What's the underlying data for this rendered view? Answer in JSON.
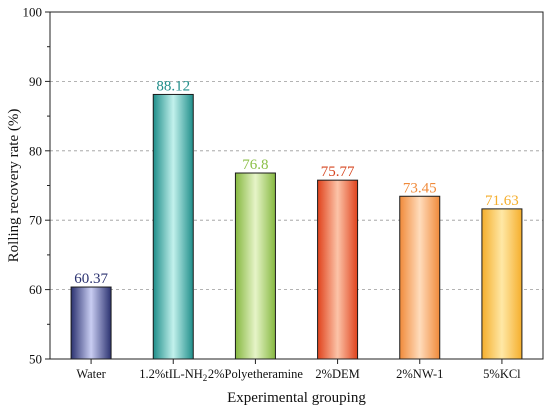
{
  "chart_data": {
    "type": "bar",
    "categories": [
      "Water",
      "1.2%tIL-NH2",
      "2%Polyetheramine",
      "2%DEM",
      "2%NW-1",
      "5%KCl"
    ],
    "category_labels": [
      {
        "text": "Water"
      },
      {
        "text": "1.2%tIL-NH",
        "sub": "2"
      },
      {
        "text": "2%Polyetheramine"
      },
      {
        "text": "2%DEM"
      },
      {
        "text": "2%NW-1"
      },
      {
        "text": "5%KCl"
      }
    ],
    "values": [
      60.37,
      88.12,
      76.8,
      75.77,
      73.45,
      71.63
    ],
    "data_labels": [
      "60.37",
      "88.12",
      "76.8",
      "75.77",
      "73.45",
      "71.63"
    ],
    "bar_colors": [
      {
        "base": "#2b3270",
        "light": "#c9cdf2",
        "label": "#2b3270"
      },
      {
        "base": "#1f8e8a",
        "light": "#c2f1ec",
        "label": "#1f8e8a"
      },
      {
        "base": "#86b840",
        "light": "#e6f4c8",
        "label": "#8cc048"
      },
      {
        "base": "#e0421c",
        "light": "#fcc4a8",
        "label": "#d6451f"
      },
      {
        "base": "#f08a3a",
        "light": "#ffdcbc",
        "label": "#f08a3a"
      },
      {
        "base": "#f5ae2c",
        "light": "#ffe8a6",
        "label": "#f5ae2c"
      }
    ],
    "title": "",
    "xlabel": "Experimental grouping",
    "ylabel": "Rolling recovery rate (%)",
    "ylim": [
      50,
      100
    ],
    "yticks": [
      50,
      60,
      70,
      80,
      90,
      100
    ],
    "grid": "horizontal dashed",
    "legend": "none"
  }
}
